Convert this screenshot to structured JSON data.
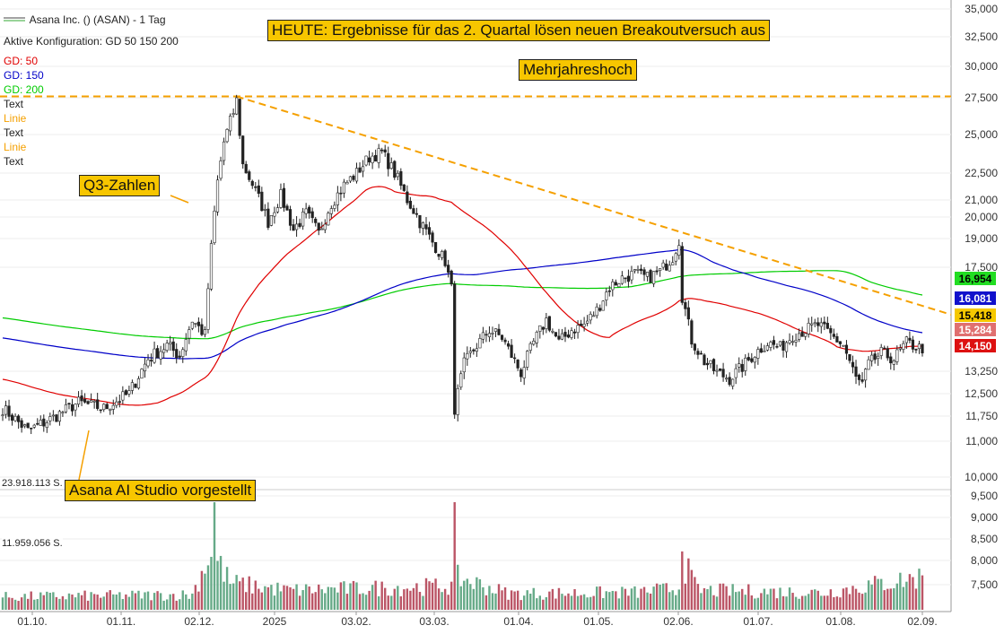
{
  "header": {
    "title": "Asana Inc. () (ASAN) - 1 Tag",
    "config": "Aktive Konfiguration: GD 50 150 200",
    "legend": [
      {
        "label": "GD: 50",
        "color": "#e00000"
      },
      {
        "label": "GD: 150",
        "color": "#0000c8"
      },
      {
        "label": "GD: 200",
        "color": "#00cc00"
      },
      {
        "label": "Text",
        "color": "#222222"
      },
      {
        "label": "Linie",
        "color": "#f5a000"
      },
      {
        "label": "Text",
        "color": "#222222"
      },
      {
        "label": "Linie",
        "color": "#f5a000"
      },
      {
        "label": "Text",
        "color": "#222222"
      }
    ]
  },
  "annotations": {
    "headline": "HEUTE: Ergebnisse für das 2. Quartal lösen neuen Breakoutversuch aus",
    "multi_year_high": "Mehrjahreshoch",
    "q3": "Q3-Zahlen",
    "ai_studio": "Asana AI Studio vorgestellt"
  },
  "volume_labels": {
    "top": "23.918.113 S.",
    "mid": "11.959.056 S."
  },
  "price_tags": [
    {
      "value": "16,954",
      "color": "#22dd22",
      "text_color": "#000000"
    },
    {
      "value": "16,081",
      "color": "#1111cc",
      "text_color": "#ffffff"
    },
    {
      "value": "15,418",
      "color": "#f5c800",
      "text_color": "#000000"
    },
    {
      "value": "15,284",
      "color": "#e07070",
      "text_color": "#ffffff"
    },
    {
      "value": "14,150",
      "color": "#dd1111",
      "text_color": "#ffffff"
    }
  ],
  "chart_data": {
    "type": "candlestick",
    "x_tick_labels": [
      "01.10.",
      "01.11.",
      "02.12.",
      "2025",
      "03.02.",
      "03.03.",
      "01.04.",
      "01.05.",
      "02.06.",
      "01.07.",
      "01.08.",
      "02.09."
    ],
    "y_tick_labels": [
      "35,000",
      "32,500",
      "30,000",
      "27,500",
      "25,000",
      "22,500",
      "21,000",
      "20,000",
      "19,000",
      "17,500",
      "13,250",
      "12,500",
      "11,750",
      "11,000",
      "10,000"
    ],
    "y_scale": "log",
    "ylim": [
      9.6,
      35.5
    ],
    "volume_tick_labels": [
      "9,500",
      "9,000",
      "8,500",
      "8,000",
      "7,500"
    ],
    "moving_averages": [
      {
        "name": "GD: 50",
        "color": "#e00000"
      },
      {
        "name": "GD: 150",
        "color": "#0000c8"
      },
      {
        "name": "GD: 200",
        "color": "#00cc00"
      }
    ],
    "horizontal_line": {
      "value": 27.6,
      "color": "#f5a000",
      "style": "dashed"
    },
    "trend_line": {
      "from_value": 27.6,
      "to_value": 15.418,
      "color": "#f5a000",
      "style": "dashed"
    },
    "price_anchors": [
      [
        0,
        12.0
      ],
      [
        8,
        11.3
      ],
      [
        16,
        11.7
      ],
      [
        24,
        12.2
      ],
      [
        32,
        12.0
      ],
      [
        40,
        12.5
      ],
      [
        46,
        13.7
      ],
      [
        52,
        14.2
      ],
      [
        56,
        13.8
      ],
      [
        60,
        15.2
      ],
      [
        64,
        14.6
      ],
      [
        66,
        18.5
      ],
      [
        68,
        22.0
      ],
      [
        70,
        24.5
      ],
      [
        73,
        26.5
      ],
      [
        74,
        27.3
      ],
      [
        76,
        23.0
      ],
      [
        80,
        21.5
      ],
      [
        84,
        19.8
      ],
      [
        88,
        21.2
      ],
      [
        92,
        19.4
      ],
      [
        96,
        20.2
      ],
      [
        100,
        19.2
      ],
      [
        104,
        20.8
      ],
      [
        108,
        21.8
      ],
      [
        112,
        22.5
      ],
      [
        116,
        23.5
      ],
      [
        120,
        23.8
      ],
      [
        124,
        22.5
      ],
      [
        128,
        21.0
      ],
      [
        132,
        19.8
      ],
      [
        136,
        18.8
      ],
      [
        140,
        17.8
      ],
      [
        142,
        16.5
      ],
      [
        143,
        12.0
      ],
      [
        146,
        13.5
      ],
      [
        150,
        14.2
      ],
      [
        154,
        14.8
      ],
      [
        158,
        14.5
      ],
      [
        162,
        13.6
      ],
      [
        164,
        13.2
      ],
      [
        168,
        14.3
      ],
      [
        172,
        15.2
      ],
      [
        176,
        14.3
      ],
      [
        180,
        14.8
      ],
      [
        184,
        15.0
      ],
      [
        188,
        15.6
      ],
      [
        192,
        16.6
      ],
      [
        196,
        17.0
      ],
      [
        200,
        17.2
      ],
      [
        204,
        17.0
      ],
      [
        208,
        17.3
      ],
      [
        212,
        18.0
      ],
      [
        214,
        18.9
      ],
      [
        215,
        16.2
      ],
      [
        218,
        14.4
      ],
      [
        222,
        13.6
      ],
      [
        226,
        13.2
      ],
      [
        230,
        13.0
      ],
      [
        234,
        13.4
      ],
      [
        238,
        13.9
      ],
      [
        242,
        14.3
      ],
      [
        246,
        14.1
      ],
      [
        250,
        14.6
      ],
      [
        254,
        14.8
      ],
      [
        258,
        15.0
      ],
      [
        262,
        14.6
      ],
      [
        266,
        14.2
      ],
      [
        270,
        13.0
      ],
      [
        272,
        12.8
      ],
      [
        274,
        13.5
      ],
      [
        278,
        13.9
      ],
      [
        282,
        13.7
      ],
      [
        286,
        14.3
      ],
      [
        290,
        14.1
      ]
    ],
    "volume_anchors": [
      [
        0,
        0.12
      ],
      [
        60,
        0.14
      ],
      [
        66,
        0.55
      ],
      [
        67,
        1.0
      ],
      [
        68,
        0.45
      ],
      [
        72,
        0.25
      ],
      [
        90,
        0.18
      ],
      [
        142,
        0.22
      ],
      [
        143,
        0.72
      ],
      [
        144,
        0.3
      ],
      [
        160,
        0.15
      ],
      [
        200,
        0.16
      ],
      [
        214,
        0.2
      ],
      [
        215,
        0.82
      ],
      [
        216,
        0.4
      ],
      [
        220,
        0.18
      ],
      [
        260,
        0.16
      ],
      [
        290,
        0.3
      ],
      [
        291,
        0.38
      ]
    ]
  }
}
